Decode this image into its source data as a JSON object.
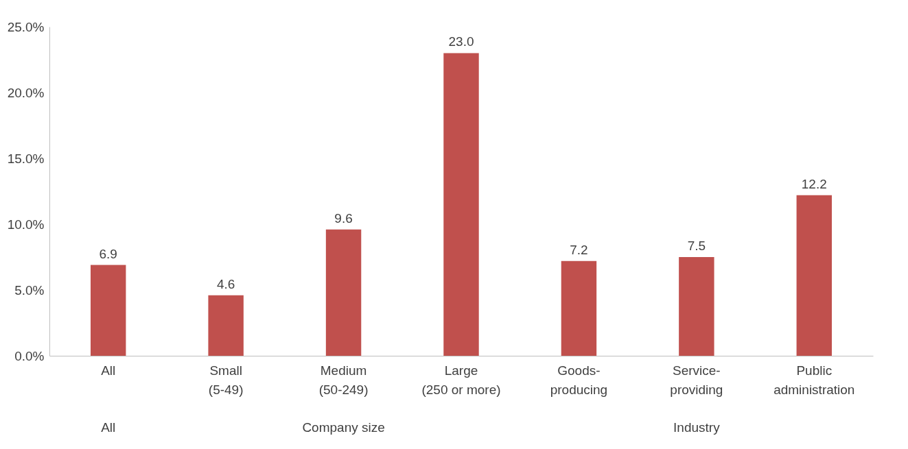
{
  "chart_data": {
    "type": "bar",
    "categories": [
      "All",
      "Small\n(5-49)",
      "Medium\n(50-249)",
      "Large\n(250 or more)",
      "Goods-\nproducing",
      "Service-\nproviding",
      "Public\nadministration"
    ],
    "values": [
      6.9,
      4.6,
      9.6,
      23.0,
      7.2,
      7.5,
      12.2
    ],
    "value_labels": [
      "6.9",
      "4.6",
      "9.6",
      "23.0",
      "7.2",
      "7.5",
      "12.2"
    ],
    "color": "#c0504d",
    "ylim": [
      0,
      25
    ],
    "yticks": [
      {
        "value": 0,
        "label": "0.0%"
      },
      {
        "value": 5,
        "label": "5.0%"
      },
      {
        "value": 10,
        "label": "10.0%"
      },
      {
        "value": 15,
        "label": "15.0%"
      },
      {
        "value": 20,
        "label": "20.0%"
      },
      {
        "value": 25,
        "label": "25.0%"
      }
    ],
    "grid": false,
    "annotations": [
      "All",
      "Company size",
      "Industry"
    ]
  }
}
